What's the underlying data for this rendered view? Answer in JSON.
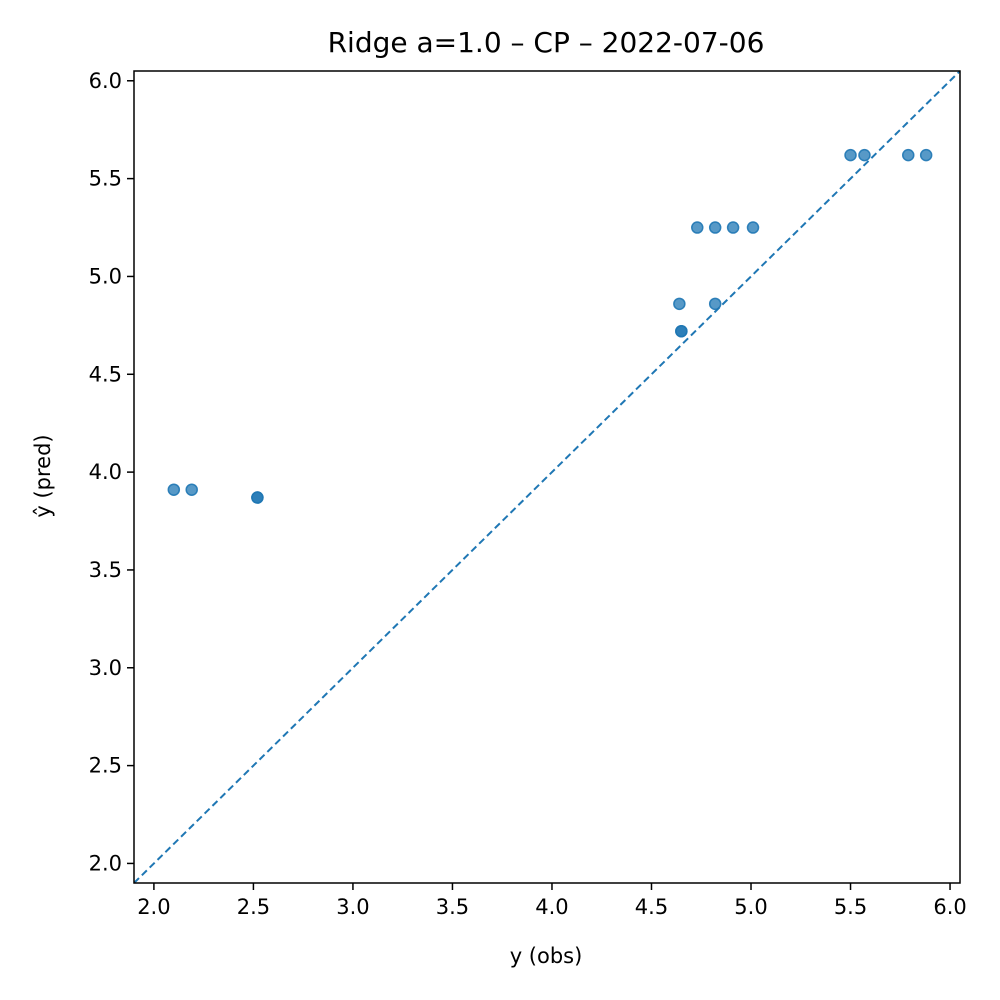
{
  "chart_data": {
    "type": "scatter",
    "title": "Ridge a=1.0 – CP – 2022-07-06",
    "xlabel": "y (obs)",
    "ylabel": "ŷ (pred)",
    "xlim": [
      1.9,
      6.05
    ],
    "ylim": [
      1.9,
      6.05
    ],
    "grid": false,
    "xticks": [
      "2.0",
      "2.5",
      "3.0",
      "3.5",
      "4.0",
      "4.5",
      "5.0",
      "5.5",
      "6.0"
    ],
    "yticks": [
      "2.0",
      "2.5",
      "3.0",
      "3.5",
      "4.0",
      "4.5",
      "5.0",
      "5.5",
      "6.0"
    ],
    "reference_line": "y = x",
    "series": [
      {
        "color": "#1f77b4",
        "points": [
          {
            "x": 2.1,
            "y": 3.91
          },
          {
            "x": 2.19,
            "y": 3.91
          },
          {
            "x": 2.52,
            "y": 3.87
          },
          {
            "x": 2.52,
            "y": 3.87
          },
          {
            "x": 4.65,
            "y": 4.72
          },
          {
            "x": 4.65,
            "y": 4.72
          },
          {
            "x": 4.64,
            "y": 4.86
          },
          {
            "x": 4.82,
            "y": 4.86
          },
          {
            "x": 4.73,
            "y": 5.25
          },
          {
            "x": 4.82,
            "y": 5.25
          },
          {
            "x": 4.91,
            "y": 5.25
          },
          {
            "x": 5.01,
            "y": 5.25
          },
          {
            "x": 5.5,
            "y": 5.62
          },
          {
            "x": 5.57,
            "y": 5.62
          },
          {
            "x": 5.79,
            "y": 5.62
          },
          {
            "x": 5.88,
            "y": 5.62
          }
        ]
      }
    ]
  }
}
